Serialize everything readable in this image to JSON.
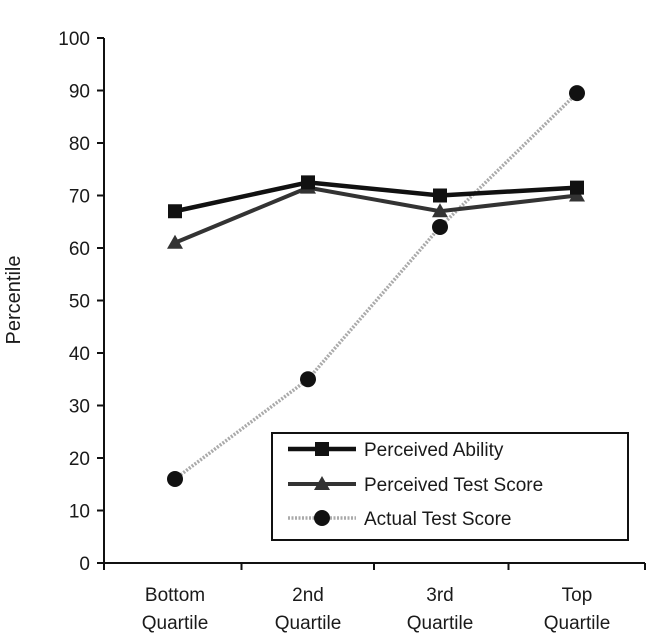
{
  "chart_data": {
    "type": "line",
    "title": "",
    "xlabel": "",
    "ylabel": "Percentile",
    "ylim": [
      0,
      100
    ],
    "yticks": [
      0,
      10,
      20,
      30,
      40,
      50,
      60,
      70,
      80,
      90,
      100
    ],
    "grid": false,
    "legend_position": "bottom-right",
    "categories": [
      [
        "Bottom",
        "Quartile"
      ],
      [
        "2nd",
        "Quartile"
      ],
      [
        "3rd",
        "Quartile"
      ],
      [
        "Top",
        "Quartile"
      ]
    ],
    "series": [
      {
        "name": "Perceived Ability",
        "marker": "square",
        "color": "#111111",
        "values": [
          67,
          72.5,
          70,
          71.5
        ]
      },
      {
        "name": "Perceived Test Score",
        "marker": "triangle",
        "color": "#333333",
        "values": [
          61,
          71.5,
          67,
          70
        ]
      },
      {
        "name": "Actual Test Score",
        "marker": "circle",
        "color": "#aaaaaa",
        "values": [
          16,
          35,
          64,
          89.5
        ]
      }
    ]
  }
}
